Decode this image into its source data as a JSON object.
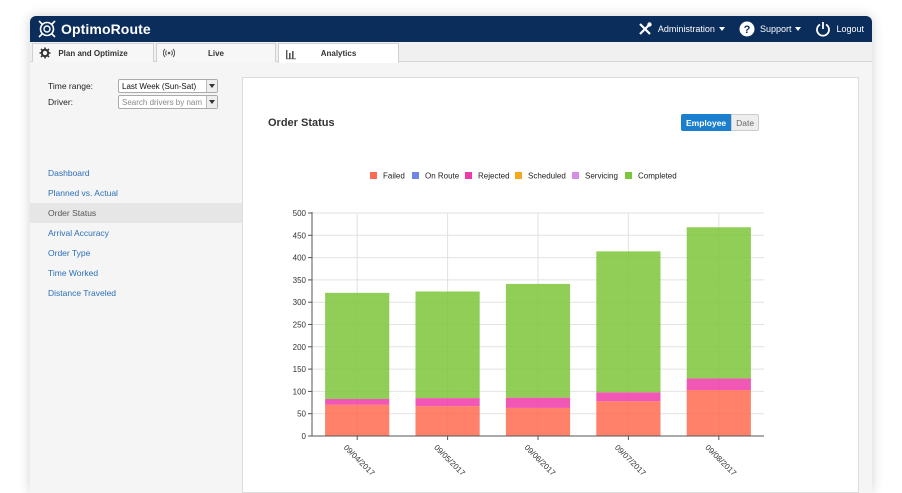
{
  "app": {
    "name": "OptimoRoute"
  },
  "topnav": {
    "administration": "Administration",
    "support": "Support",
    "logout": "Logout"
  },
  "tabs": [
    {
      "label": "Plan and Optimize",
      "icon": "gear-icon"
    },
    {
      "label": "Live",
      "icon": "broadcast-icon"
    },
    {
      "label": "Analytics",
      "icon": "bar-chart-icon"
    }
  ],
  "filters": {
    "time_range_label": "Time range:",
    "time_range_value": "Last Week (Sun-Sat)",
    "driver_label": "Driver:",
    "driver_placeholder": "Search drivers by nam"
  },
  "menu": [
    {
      "label": "Dashboard",
      "active": false
    },
    {
      "label": "Planned vs. Actual",
      "active": false
    },
    {
      "label": "Order Status",
      "active": true
    },
    {
      "label": "Arrival Accuracy",
      "active": false
    },
    {
      "label": "Order Type",
      "active": false
    },
    {
      "label": "Time Worked",
      "active": false
    },
    {
      "label": "Distance Traveled",
      "active": false
    }
  ],
  "main": {
    "title": "Order Status",
    "toggle_employee": "Employee",
    "toggle_date": "Date"
  },
  "colors": {
    "failed": "#ff6b50",
    "on_route": "#6f86e6",
    "rejected": "#ee3aa8",
    "scheduled": "#f5a81c",
    "servicing": "#d58ee6",
    "completed": "#7cc63a",
    "brand": "#0b2d5c",
    "accent": "#1a7fcf"
  },
  "chart_data": {
    "type": "bar",
    "stacked": true,
    "categories": [
      "09/04/2017",
      "09/05/2017",
      "09/06/2017",
      "09/07/2017",
      "09/08/2017"
    ],
    "series": [
      {
        "name": "Failed",
        "values": [
          70,
          67,
          63,
          78,
          103
        ]
      },
      {
        "name": "On Route",
        "values": [
          0,
          0,
          0,
          0,
          0
        ]
      },
      {
        "name": "Rejected",
        "values": [
          13,
          18,
          23,
          20,
          26
        ]
      },
      {
        "name": "Scheduled",
        "values": [
          0,
          0,
          0,
          0,
          0
        ]
      },
      {
        "name": "Servicing",
        "values": [
          0,
          0,
          0,
          0,
          0
        ]
      },
      {
        "name": "Completed",
        "values": [
          238,
          239,
          255,
          316,
          339
        ]
      }
    ],
    "ylim": [
      0,
      500
    ],
    "yticks": [
      0,
      50,
      100,
      150,
      200,
      250,
      300,
      350,
      400,
      450,
      500
    ],
    "grid": true,
    "legend": "top-center"
  }
}
